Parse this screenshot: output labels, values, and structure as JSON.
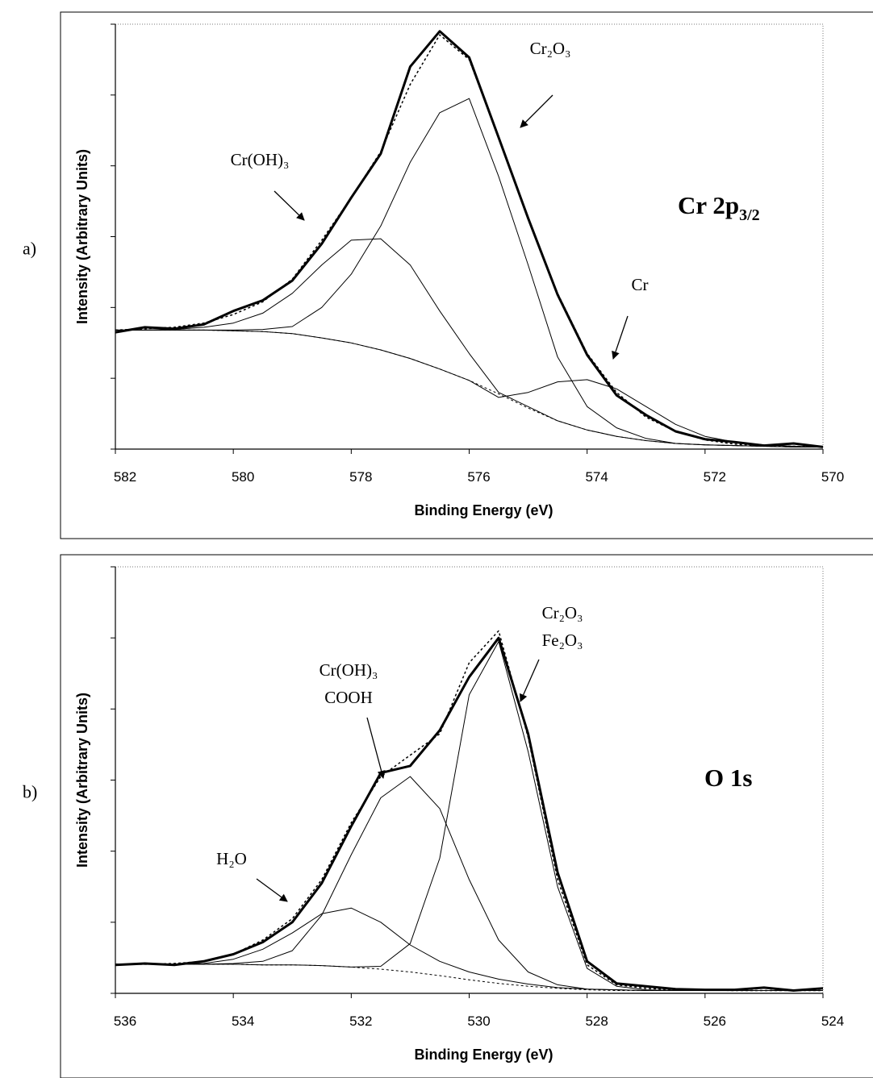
{
  "chart_data": [
    {
      "type": "line",
      "panel": "a)",
      "xlabel": "Binding Energy (eV)",
      "ylabel": "Intensity (Arbitrary Units)",
      "label": {
        "text": "Cr 2p",
        "sub": "3/2"
      },
      "x": [
        582,
        581.5,
        581,
        580.5,
        580,
        579.5,
        579,
        578.5,
        578,
        577.5,
        577,
        576.5,
        576,
        575.5,
        575,
        574.5,
        574,
        573.5,
        573,
        572.5,
        572,
        571.5,
        571,
        570.5,
        570
      ],
      "xlim": [
        582,
        570
      ],
      "xticks": [
        582,
        580,
        578,
        576,
        574,
        572,
        570
      ],
      "ylim": [
        0,
        6
      ],
      "yticks": [
        0,
        1,
        2,
        3,
        4,
        5,
        6
      ],
      "series": [
        {
          "color": "#000000",
          "width": 1,
          "dash": true,
          "values": [
            1.68,
            1.68,
            1.68,
            1.68,
            1.67,
            1.66,
            1.63,
            1.57,
            1.5,
            1.4,
            1.28,
            1.13,
            0.97,
            0.78,
            0.58,
            0.4,
            0.27,
            0.18,
            0.12,
            0.08,
            0.06,
            0.05,
            0.04,
            0.03,
            0.03
          ]
        },
        {
          "color": "#000000",
          "width": 1,
          "dash": false,
          "values": [
            1.68,
            1.68,
            1.69,
            1.72,
            1.78,
            1.92,
            2.2,
            2.6,
            2.95,
            2.97,
            2.6,
            1.95,
            1.35,
            0.8,
            0.6,
            0.4,
            0.27,
            0.18,
            0.12,
            0.08,
            0.06,
            0.05,
            0.04,
            0.03,
            0.03
          ]
        },
        {
          "color": "#000000",
          "width": 1,
          "dash": false,
          "values": [
            1.68,
            1.68,
            1.68,
            1.68,
            1.68,
            1.69,
            1.73,
            2.0,
            2.47,
            3.15,
            4.05,
            4.75,
            4.95,
            3.85,
            2.6,
            1.3,
            0.6,
            0.3,
            0.15,
            0.08,
            0.06,
            0.05,
            0.04,
            0.03,
            0.03
          ]
        },
        {
          "color": "#000000",
          "width": 1,
          "dash": false,
          "values": [
            1.68,
            1.68,
            1.68,
            1.68,
            1.67,
            1.66,
            1.63,
            1.57,
            1.5,
            1.4,
            1.28,
            1.13,
            0.97,
            0.73,
            0.8,
            0.95,
            0.98,
            0.85,
            0.6,
            0.35,
            0.18,
            0.1,
            0.06,
            0.04,
            0.03
          ]
        },
        {
          "color": "#000000",
          "width": 1.5,
          "dash": true,
          "values": [
            1.68,
            1.7,
            1.72,
            1.78,
            1.9,
            2.08,
            2.4,
            2.95,
            3.55,
            4.2,
            5.15,
            5.85,
            5.5,
            4.4,
            3.25,
            2.2,
            1.35,
            0.8,
            0.45,
            0.25,
            0.13,
            0.07,
            0.05,
            0.04,
            0.03
          ]
        },
        {
          "color": "#000000",
          "width": 3,
          "dash": false,
          "values": [
            1.65,
            1.72,
            1.7,
            1.76,
            1.95,
            2.1,
            2.38,
            2.9,
            3.55,
            4.17,
            5.4,
            5.9,
            5.53,
            4.4,
            3.26,
            2.18,
            1.33,
            0.76,
            0.48,
            0.25,
            0.14,
            0.1,
            0.05,
            0.08,
            0.03
          ]
        }
      ],
      "annotations": [
        {
          "lines": [
            "Cr(OH)₃"
          ]
        },
        {
          "lines": [
            "Cr₂O₃"
          ]
        },
        {
          "lines": [
            "Cr"
          ]
        }
      ]
    },
    {
      "type": "line",
      "panel": "b)",
      "xlabel": "Binding Energy (eV)",
      "ylabel": "Intensity (Arbitrary Units)",
      "label": {
        "text": "O 1s"
      },
      "x": [
        536,
        535.5,
        535,
        534.5,
        534,
        533.5,
        533,
        532.5,
        532,
        531.5,
        531,
        530.5,
        530,
        529.5,
        529,
        528.5,
        528,
        527.5,
        527,
        526.5,
        526,
        525.5,
        525,
        524.5,
        524
      ],
      "xlim": [
        536,
        524
      ],
      "xticks": [
        536,
        534,
        532,
        530,
        528,
        526,
        524
      ],
      "ylim": [
        0,
        6
      ],
      "yticks": [
        0,
        1,
        2,
        3,
        4,
        5,
        6
      ],
      "series": [
        {
          "color": "#000000",
          "width": 1,
          "dash": true,
          "values": [
            0.41,
            0.41,
            0.41,
            0.41,
            0.41,
            0.4,
            0.4,
            0.39,
            0.37,
            0.34,
            0.3,
            0.25,
            0.19,
            0.14,
            0.1,
            0.07,
            0.05,
            0.04,
            0.04,
            0.04,
            0.04,
            0.04,
            0.04,
            0.04,
            0.04
          ]
        },
        {
          "color": "#000000",
          "width": 1,
          "dash": false,
          "values": [
            0.41,
            0.41,
            0.41,
            0.42,
            0.48,
            0.62,
            0.85,
            1.12,
            1.2,
            1.0,
            0.68,
            0.45,
            0.3,
            0.2,
            0.13,
            0.08,
            0.06,
            0.05,
            0.04,
            0.04,
            0.04,
            0.04,
            0.04,
            0.04,
            0.04
          ]
        },
        {
          "color": "#000000",
          "width": 1,
          "dash": false,
          "values": [
            0.41,
            0.41,
            0.41,
            0.41,
            0.42,
            0.45,
            0.6,
            1.1,
            1.95,
            2.75,
            3.05,
            2.6,
            1.6,
            0.75,
            0.3,
            0.12,
            0.06,
            0.05,
            0.04,
            0.04,
            0.04,
            0.04,
            0.04,
            0.04,
            0.04
          ]
        },
        {
          "color": "#000000",
          "width": 1,
          "dash": false,
          "values": [
            0.41,
            0.41,
            0.41,
            0.41,
            0.41,
            0.4,
            0.4,
            0.39,
            0.37,
            0.38,
            0.7,
            1.9,
            4.2,
            4.95,
            3.4,
            1.5,
            0.35,
            0.1,
            0.05,
            0.04,
            0.04,
            0.04,
            0.04,
            0.04,
            0.04
          ]
        },
        {
          "color": "#000000",
          "width": 1.5,
          "dash": true,
          "values": [
            0.41,
            0.41,
            0.42,
            0.45,
            0.55,
            0.75,
            1.05,
            1.6,
            2.4,
            3.05,
            3.35,
            3.65,
            4.65,
            5.1,
            3.6,
            1.6,
            0.4,
            0.12,
            0.07,
            0.05,
            0.05,
            0.04,
            0.04,
            0.04,
            0.04
          ]
        },
        {
          "color": "#000000",
          "width": 3,
          "dash": false,
          "values": [
            0.4,
            0.42,
            0.4,
            0.45,
            0.55,
            0.72,
            1.0,
            1.55,
            2.35,
            3.1,
            3.2,
            3.7,
            4.45,
            5.0,
            3.65,
            1.7,
            0.45,
            0.14,
            0.1,
            0.06,
            0.05,
            0.05,
            0.08,
            0.04,
            0.07
          ]
        }
      ],
      "annotations": [
        {
          "lines": [
            "H₂O"
          ]
        },
        {
          "lines": [
            "Cr(OH)₃",
            "COOH"
          ]
        },
        {
          "lines": [
            "Cr₂O₃",
            "Fe₂O₃"
          ]
        }
      ]
    }
  ]
}
